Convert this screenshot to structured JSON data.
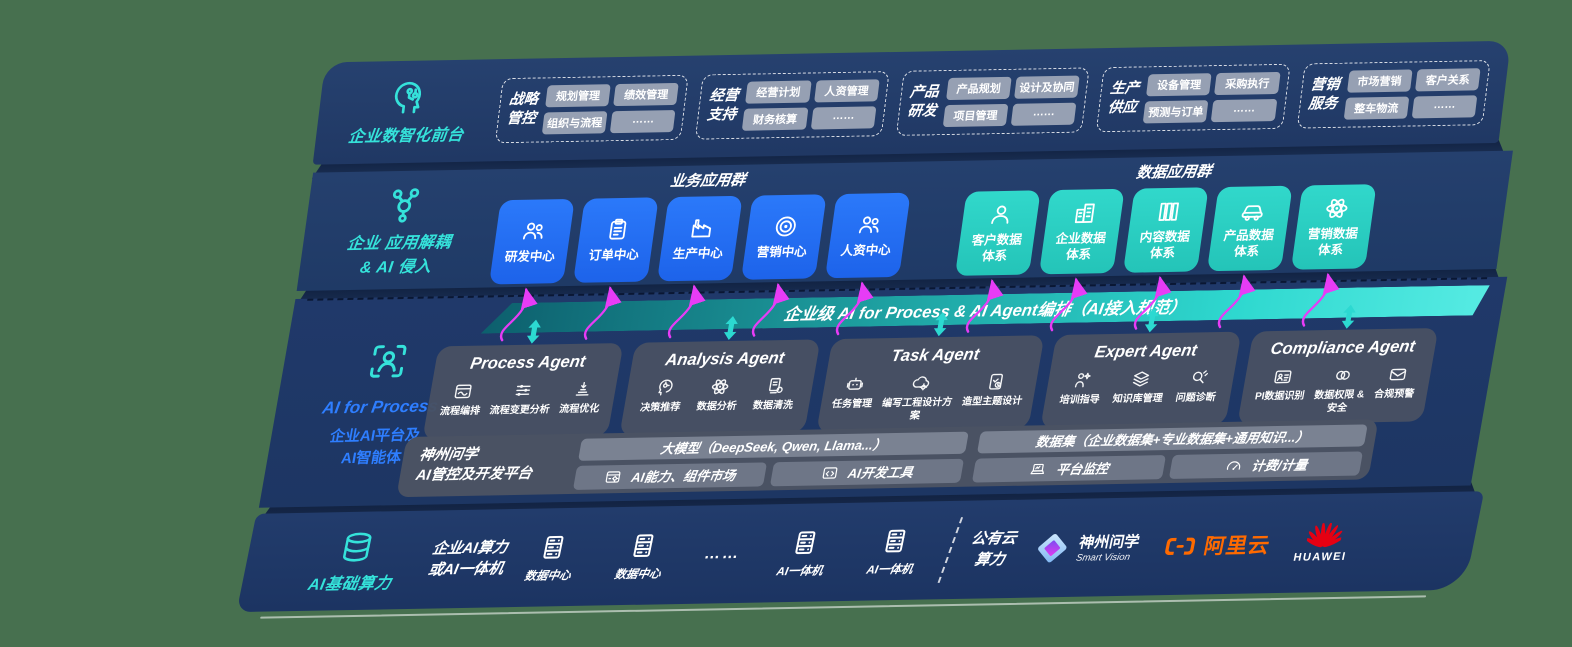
{
  "background_color": "#47704F",
  "colors": {
    "band_navy": "#20396A",
    "accent_teal": "#35E2DA",
    "accent_blue": "#2E7EFF",
    "app_blue": "#2371F2",
    "data_teal": "#2BD3C7",
    "arrow_magenta": "#E73CF6",
    "alibaba_orange": "#FF6A00",
    "huawei_red": "#E60012"
  },
  "band1": {
    "label": "企业数智化前台",
    "icon": "brainhead-icon",
    "groups": [
      {
        "name": "战略\n管控",
        "pills": [
          "规划管理",
          "绩效管理",
          "组织与流程",
          "……"
        ]
      },
      {
        "name": "经营\n支持",
        "pills": [
          "经营计划",
          "人资管理",
          "财务核算",
          "……"
        ]
      },
      {
        "name": "产品\n研发",
        "pills": [
          "产品规划",
          "设计及协同",
          "项目管理",
          "……"
        ]
      },
      {
        "name": "生产\n供应",
        "pills": [
          "设备管理",
          "采购执行",
          "预测与订单",
          "……"
        ]
      },
      {
        "name": "营销\n服务",
        "pills": [
          "市场营销",
          "客户关系",
          "整车物流",
          "……"
        ]
      }
    ]
  },
  "band2": {
    "label_line1": "企业 应用解耦",
    "label_line2": "& AI 侵入",
    "icon": "molecule-icon",
    "business_group": {
      "heading": "业务应用群",
      "boxes": [
        {
          "label": "研发中心",
          "icon": "people"
        },
        {
          "label": "订单中心",
          "icon": "clipboard"
        },
        {
          "label": "生产中心",
          "icon": "factory"
        },
        {
          "label": "营销中心",
          "icon": "target"
        },
        {
          "label": "人资中心",
          "icon": "team"
        }
      ]
    },
    "data_group": {
      "heading": "数据应用群",
      "boxes": [
        {
          "label": "客户数据\n体系",
          "icon": "person"
        },
        {
          "label": "企业数据\n体系",
          "icon": "building"
        },
        {
          "label": "内容数据\n体系",
          "icon": "books"
        },
        {
          "label": "产品数据\n体系",
          "icon": "car"
        },
        {
          "label": "营销数据\n体系",
          "icon": "atom"
        }
      ]
    }
  },
  "band3": {
    "bar_label": "企业级 AI for Process & AI Agent编排（AI接入规范）",
    "side": {
      "icon": "scanperson-icon",
      "title": "AI for Process",
      "line2": "企业AI平台及",
      "line3": "AI智能体"
    },
    "agents": [
      {
        "title": "Process Agent",
        "items": [
          {
            "label": "流程编排",
            "icon": "window"
          },
          {
            "label": "流程变更分析",
            "icon": "sliders"
          },
          {
            "label": "流程优化",
            "icon": "stack"
          }
        ]
      },
      {
        "title": "Analysis Agent",
        "items": [
          {
            "label": "决策推荐",
            "icon": "headchip"
          },
          {
            "label": "数据分析",
            "icon": "atom"
          },
          {
            "label": "数据清洗",
            "icon": "docdata"
          }
        ]
      },
      {
        "title": "Task Agent",
        "items": [
          {
            "label": "任务管理",
            "icon": "robot"
          },
          {
            "label": "编写工程设计方案",
            "icon": "cloudgear"
          },
          {
            "label": "造型主题设计",
            "icon": "tabletcheck"
          }
        ]
      },
      {
        "title": "Expert Agent",
        "items": [
          {
            "label": "培训指导",
            "icon": "present"
          },
          {
            "label": "知识库管理",
            "icon": "layers"
          },
          {
            "label": "问题诊断",
            "icon": "diag"
          }
        ]
      },
      {
        "title": "Compliance Agent",
        "items": [
          {
            "label": "PI数据识别",
            "icon": "idcard"
          },
          {
            "label": "数据权限 &\n安全",
            "icon": "rings"
          },
          {
            "label": "合规预警",
            "icon": "mailshield"
          }
        ]
      }
    ],
    "platform": {
      "title_line1": "神州问学",
      "title_line2": "AI管控及开发平台",
      "model_bar": "大模型（DeepSeek, Qwen, Llama...）",
      "model_cells": [
        {
          "label": "AI能力、组件市场",
          "icon": "gearwin"
        },
        {
          "label": "AI开发工具",
          "icon": "codewin"
        }
      ],
      "data_bar": "数据集（企业数据集+专业数据集+通用知识...）",
      "data_cells": [
        {
          "label": "平台监控",
          "icon": "laptop"
        },
        {
          "label": "计费/计量",
          "icon": "gauge"
        }
      ]
    }
  },
  "band4": {
    "label": "AI基础算力",
    "icon": "database-icon",
    "compute_label": "企业AI算力\n或AI一体机",
    "nodes": [
      {
        "label": "数据中心",
        "icon": "server"
      },
      {
        "label": "数据中心",
        "icon": "server"
      },
      {
        "label": "……",
        "icon": ""
      },
      {
        "label": "AI一体机",
        "icon": "server"
      },
      {
        "label": "AI一体机",
        "icon": "server"
      }
    ],
    "public_cloud": "公有云\n算力",
    "vendors": [
      {
        "name": "神州问学",
        "sub": "Smart Vision",
        "logo": "smartvision-diamond-logo"
      },
      {
        "name": "阿里云",
        "logo": "alibaba-cloud-logo"
      },
      {
        "name": "HUAWEI",
        "logo": "huawei-flower-logo"
      }
    ]
  }
}
